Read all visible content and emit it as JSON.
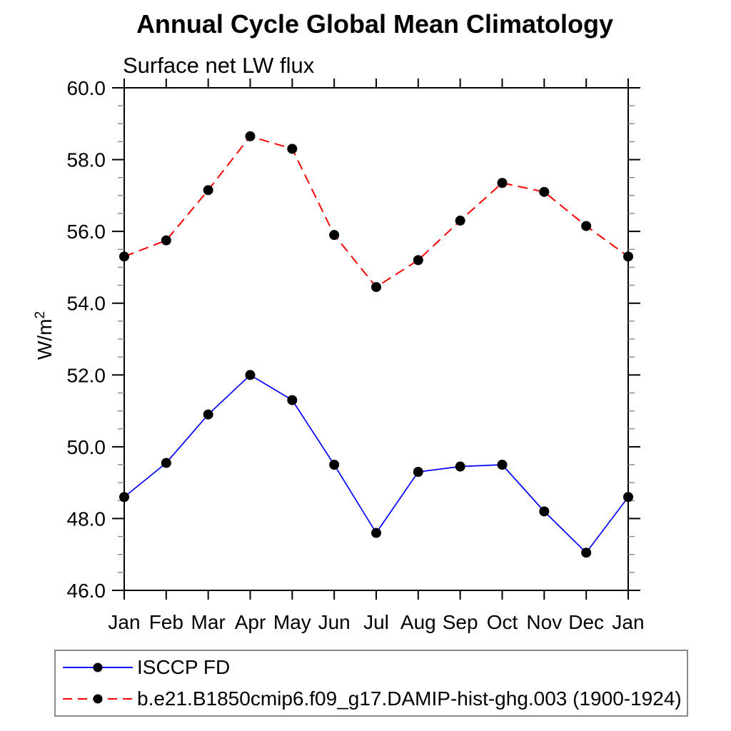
{
  "title": "Annual Cycle Global Mean Climatology",
  "subtitle": "Surface net LW flux",
  "y_axis": {
    "label_base": "W/m",
    "label_sup": "2"
  },
  "chart_data": {
    "type": "line",
    "title": "Annual Cycle Global Mean Climatology",
    "subtitle": "Surface net LW flux",
    "ylabel": "W/m²",
    "xlabel": "",
    "categories": [
      "Jan",
      "Feb",
      "Mar",
      "Apr",
      "May",
      "Jun",
      "Jul",
      "Aug",
      "Sep",
      "Oct",
      "Nov",
      "Dec",
      "Jan"
    ],
    "ylim": [
      46.0,
      60.0
    ],
    "ytick_major_interval": 2.0,
    "ytick_minor_interval": 0.5,
    "ytick_label_format": "one-decimal",
    "grid": false,
    "legend_position": "bottom-outside",
    "series": [
      {
        "name": "ISCCP FD",
        "color": "#0000ff",
        "line_style": "solid",
        "marker": "filled-circle",
        "marker_color": "#000000",
        "values": [
          48.6,
          49.55,
          50.9,
          52.0,
          51.3,
          49.5,
          47.6,
          49.3,
          49.45,
          49.5,
          48.2,
          47.05,
          48.6
        ]
      },
      {
        "name": "b.e21.B1850cmip6.f09_g17.DAMIP-hist-ghg.003 (1900-1924)",
        "color": "#ff0000",
        "line_style": "dashed",
        "marker": "filled-circle",
        "marker_color": "#000000",
        "values": [
          55.3,
          55.75,
          57.15,
          58.65,
          58.3,
          55.9,
          54.45,
          55.2,
          56.3,
          57.35,
          57.1,
          56.15,
          55.3
        ]
      }
    ]
  }
}
